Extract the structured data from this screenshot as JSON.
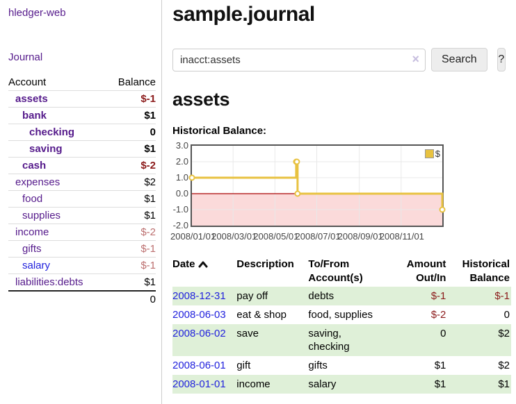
{
  "app": {
    "brand": "hledger-web"
  },
  "colors": {
    "link_visited": "#551a8b",
    "link_unvisited": "#2222dd",
    "negative_strong": "#8b1a1a",
    "negative_soft": "#bc6f6f",
    "row_stripe_green": "#dff0d8",
    "series_gold": "#e8c240",
    "chart_border": "#545454",
    "grid_line": "#e8e8e8",
    "negative_zone": "#fbdada",
    "zero_line": "#aa0000"
  },
  "sidebar": {
    "journal_link": "Journal",
    "table": {
      "account_header": "Account",
      "balance_header": "Balance",
      "rows": [
        {
          "name": "assets",
          "balance": "$-1",
          "level": 1,
          "bold": true,
          "balance_style": "neg-strong",
          "link_style": "visited"
        },
        {
          "name": "bank",
          "balance": "$1",
          "level": 2,
          "bold": true,
          "balance_style": "pos",
          "link_style": "visited"
        },
        {
          "name": "checking",
          "balance": "0",
          "level": 3,
          "bold": true,
          "balance_style": "pos",
          "link_style": "visited"
        },
        {
          "name": "saving",
          "balance": "$1",
          "level": 3,
          "bold": true,
          "balance_style": "pos",
          "link_style": "visited"
        },
        {
          "name": "cash",
          "balance": "$-2",
          "level": 2,
          "bold": true,
          "balance_style": "neg-strong",
          "link_style": "visited"
        },
        {
          "name": "expenses",
          "balance": "$2",
          "level": 1,
          "bold": false,
          "balance_style": "pos",
          "link_style": "visited"
        },
        {
          "name": "food",
          "balance": "$1",
          "level": 2,
          "bold": false,
          "balance_style": "pos",
          "link_style": "visited"
        },
        {
          "name": "supplies",
          "balance": "$1",
          "level": 2,
          "bold": false,
          "balance_style": "pos",
          "link_style": "visited"
        },
        {
          "name": "income",
          "balance": "$-2",
          "level": 1,
          "bold": false,
          "balance_style": "neg-soft",
          "link_style": "visited"
        },
        {
          "name": "gifts",
          "balance": "$-1",
          "level": 2,
          "bold": false,
          "balance_style": "neg-soft",
          "link_style": "visited"
        },
        {
          "name": "salary",
          "balance": "$-1",
          "level": 2,
          "bold": false,
          "balance_style": "neg-soft",
          "link_style": "unvisited"
        },
        {
          "name": "liabilities:debts",
          "balance": "$1",
          "level": 1,
          "bold": false,
          "balance_style": "pos",
          "link_style": "visited"
        }
      ],
      "total": "0"
    }
  },
  "main": {
    "title": "sample.journal",
    "search": {
      "value": "inacct:assets",
      "clear_icon": "×",
      "search_button": "Search",
      "help_button": "?"
    },
    "account_heading": "assets",
    "chart_title": "Historical Balance:"
  },
  "chart_data": {
    "type": "line",
    "title": "Historical Balance:",
    "step": true,
    "series": [
      {
        "name": "$",
        "color": "#e8c240",
        "points": [
          [
            "2008-01-01",
            1
          ],
          [
            "2008-06-01",
            2
          ],
          [
            "2008-06-02",
            2
          ],
          [
            "2008-06-03",
            0
          ],
          [
            "2008-12-31",
            -1
          ]
        ]
      }
    ],
    "xlim": [
      "2008-01-01",
      "2008-12-31"
    ],
    "ylim": [
      -2,
      3
    ],
    "y_ticks": [
      "3.0",
      "2.0",
      "1.0",
      "0.0",
      "-1.0",
      "-2.0"
    ],
    "x_ticks": [
      "2008/01/01",
      "2008/03/01",
      "2008/05/01",
      "2008/07/01",
      "2008/09/01",
      "2008/11/01"
    ],
    "grid": true,
    "legend_position": "top-right",
    "negative_zone_below": 0
  },
  "register": {
    "headers": {
      "date": "Date",
      "description": "Description",
      "accounts": "To/From Account(s)",
      "amount": "Amount Out/In",
      "balance": "Historical Balance"
    },
    "rows": [
      {
        "date": "2008-12-31",
        "description": "pay off",
        "accounts": "debts",
        "amount": "$-1",
        "balance": "$-1",
        "amount_style": "neg-strong",
        "balance_style": "neg-strong",
        "striped": true
      },
      {
        "date": "2008-06-03",
        "description": "eat & shop",
        "accounts": "food, supplies",
        "amount": "$-2",
        "balance": "0",
        "amount_style": "neg-strong",
        "balance_style": "pos",
        "striped": false
      },
      {
        "date": "2008-06-02",
        "description": "save",
        "accounts": "saving, checking",
        "amount": "0",
        "balance": "$2",
        "amount_style": "pos",
        "balance_style": "pos",
        "striped": true
      },
      {
        "date": "2008-06-01",
        "description": "gift",
        "accounts": "gifts",
        "amount": "$1",
        "balance": "$2",
        "amount_style": "pos",
        "balance_style": "pos",
        "striped": false
      },
      {
        "date": "2008-01-01",
        "description": "income",
        "accounts": "salary",
        "amount": "$1",
        "balance": "$1",
        "amount_style": "pos",
        "balance_style": "pos",
        "striped": true
      }
    ]
  }
}
